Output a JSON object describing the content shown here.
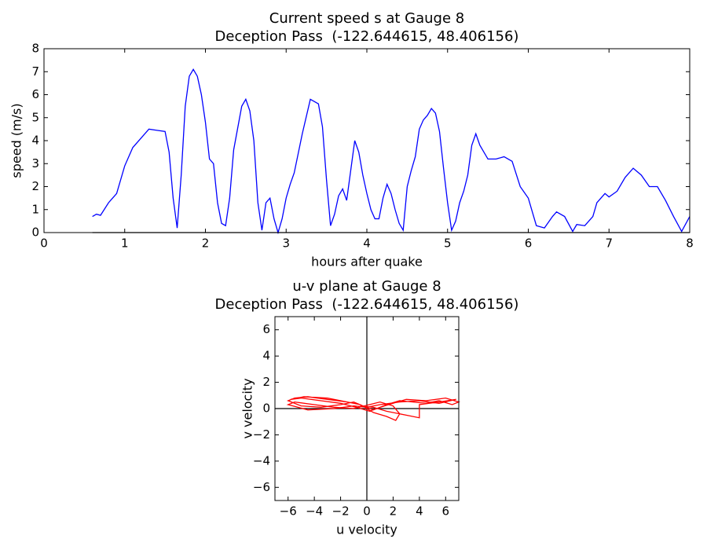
{
  "chart_data": [
    {
      "type": "line",
      "title": "Current speed s at Gauge 8",
      "subtitle": "Deception Pass  (-122.644615, 48.406156)",
      "x_label": "hours after quake",
      "y_label": "speed (m/s)",
      "xlim": [
        0,
        8
      ],
      "ylim": [
        0,
        8
      ],
      "xticks": [
        0,
        1,
        2,
        3,
        4,
        5,
        6,
        7,
        8
      ],
      "yticks": [
        0,
        1,
        2,
        3,
        4,
        5,
        6,
        7,
        8
      ],
      "series": [
        {
          "color": "#0000ff",
          "x": [
            0.6,
            0.65,
            0.7,
            0.8,
            0.9,
            1.0,
            1.1,
            1.2,
            1.3,
            1.4,
            1.5,
            1.55,
            1.6,
            1.65,
            1.7,
            1.75,
            1.8,
            1.85,
            1.9,
            1.95,
            2.0,
            2.05,
            2.1,
            2.15,
            2.2,
            2.25,
            2.3,
            2.35,
            2.45,
            2.5,
            2.55,
            2.6,
            2.65,
            2.7,
            2.75,
            2.8,
            2.85,
            2.9,
            2.95,
            3.0,
            3.05,
            3.1,
            3.2,
            3.3,
            3.4,
            3.45,
            3.5,
            3.55,
            3.6,
            3.65,
            3.7,
            3.75,
            3.8,
            3.85,
            3.9,
            3.95,
            4.0,
            4.05,
            4.1,
            4.15,
            4.2,
            4.25,
            4.3,
            4.35,
            4.4,
            4.45,
            4.5,
            4.55,
            4.6,
            4.65,
            4.7,
            4.75,
            4.8,
            4.85,
            4.9,
            4.95,
            5.0,
            5.05,
            5.1,
            5.15,
            5.2,
            5.25,
            5.3,
            5.35,
            5.4,
            5.5,
            5.6,
            5.7,
            5.8,
            5.9,
            6.0,
            6.05,
            6.1,
            6.2,
            6.3,
            6.35,
            6.45,
            6.55,
            6.6,
            6.7,
            6.8,
            6.85,
            6.95,
            7.0,
            7.1,
            7.2,
            7.3,
            7.4,
            7.5,
            7.6,
            7.7,
            7.8,
            7.9,
            8.0
          ],
          "values": [
            0.7,
            0.8,
            0.75,
            1.3,
            1.7,
            2.9,
            3.7,
            4.1,
            4.5,
            4.45,
            4.4,
            3.5,
            1.5,
            0.2,
            2.5,
            5.5,
            6.8,
            7.1,
            6.8,
            6.0,
            4.8,
            3.2,
            3.0,
            1.3,
            0.4,
            0.3,
            1.5,
            3.6,
            5.5,
            5.8,
            5.3,
            4.0,
            1.3,
            0.1,
            1.3,
            1.5,
            0.6,
            0,
            0.6,
            1.5,
            2.1,
            2.6,
            4.3,
            5.8,
            5.6,
            4.6,
            2.3,
            0.3,
            0.8,
            1.6,
            1.9,
            1.4,
            2.7,
            4.0,
            3.5,
            2.5,
            1.7,
            1.0,
            0.6,
            0.6,
            1.5,
            2.1,
            1.7,
            1.0,
            0.4,
            0.1,
            2.0,
            2.7,
            3.3,
            4.5,
            4.9,
            5.1,
            5.4,
            5.2,
            4.4,
            2.8,
            1.3,
            0.1,
            0.5,
            1.3,
            1.8,
            2.5,
            3.8,
            4.3,
            3.8,
            3.2,
            3.2,
            3.3,
            3.1,
            2.0,
            1.5,
            0.9,
            0.3,
            0.2,
            0.7,
            0.9,
            0.7,
            0.05,
            0.35,
            0.3,
            0.7,
            1.3,
            1.7,
            1.55,
            1.8,
            2.4,
            2.8,
            2.5,
            2.0,
            2.0,
            1.4,
            0.7,
            0.05,
            0.7
          ]
        },
        {
          "color": "#000000",
          "x": [
            0.6,
            8
          ],
          "values": [
            0,
            0
          ]
        }
      ]
    },
    {
      "type": "line",
      "title": "u-v plane at Gauge 8",
      "subtitle": "Deception Pass  (-122.644615, 48.406156)",
      "x_label": "u velocity",
      "y_label": "v velocity",
      "zero_lines": true,
      "xlim": [
        -7,
        7
      ],
      "ylim": [
        -7,
        7
      ],
      "xticks": [
        {
          "value": -6,
          "label": "−6"
        },
        {
          "value": -4,
          "label": "−4"
        },
        {
          "value": -2,
          "label": "−2"
        },
        0,
        2,
        4,
        6
      ],
      "yticks": [
        {
          "value": -6,
          "label": "−6"
        },
        {
          "value": -4,
          "label": "−4"
        },
        {
          "value": -2,
          "label": "−2"
        },
        0,
        2,
        4,
        6
      ],
      "series": [
        {
          "color": "#ff0000",
          "x": [
            -0.5,
            -1.5,
            -3,
            -4.5,
            -5.5,
            -6,
            -5,
            -3.5,
            -2,
            -1,
            -0.3,
            0.5,
            1.5,
            2.5,
            3.5,
            4.5,
            5.5,
            6.5,
            7,
            6,
            4.5,
            3,
            2,
            1,
            0.2,
            -0.8,
            -2,
            -3.5,
            -5,
            -5.8,
            -4.8,
            -3,
            -1.5,
            -0.5,
            0.5,
            1.5,
            2.2,
            2.5,
            2,
            1,
            0.2,
            -1,
            -2.5,
            -4,
            -5.5,
            -6,
            -4.5,
            -2.5,
            -1,
            0,
            1,
            2.5,
            4,
            5.5,
            6.8,
            5.5,
            4,
            4,
            3,
            1.5,
            0.5,
            -0.5
          ],
          "values": [
            0.3,
            0.5,
            0.7,
            0.9,
            0.8,
            0.6,
            0.2,
            0.1,
            0.3,
            0.5,
            0.2,
            -0.1,
            0.3,
            0.6,
            0.5,
            0.4,
            0.6,
            0.3,
            0.5,
            0.8,
            0.6,
            0.7,
            0.4,
            0.1,
            -0.2,
            0.1,
            0.4,
            0.6,
            0.8,
            0.7,
            0.9,
            0.8,
            0.5,
            0.3,
            -0.3,
            -0.6,
            -0.9,
            -0.4,
            0.2,
            0.5,
            0.3,
            0,
            0.1,
            0.3,
            0.5,
            0.3,
            -0.1,
            0,
            0.2,
            0.1,
            0.3,
            0.5,
            0.6,
            0.4,
            0.7,
            0.5,
            0.3,
            -0.7,
            -0.5,
            -0.2,
            0.1,
            0.2
          ]
        }
      ]
    }
  ]
}
